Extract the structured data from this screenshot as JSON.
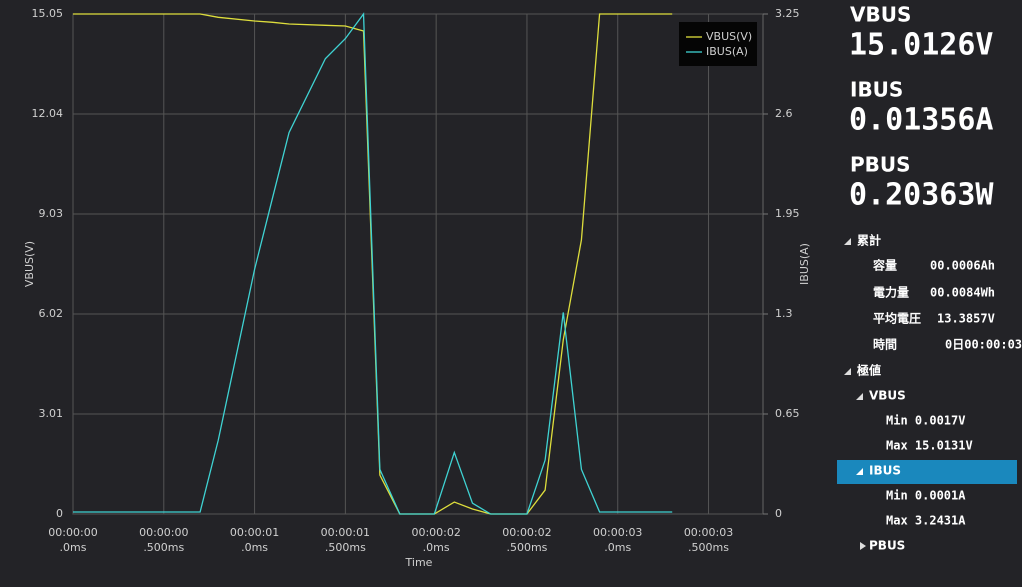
{
  "chart_data": {
    "type": "line",
    "x_label": "Time",
    "y_label": "VBUS(V)",
    "y2_label": "IBUS(A)",
    "x": [
      0,
      0.7,
      0.8,
      1.0,
      1.1,
      1.19,
      1.39,
      1.5,
      1.6,
      1.69,
      1.8,
      1.99,
      2.1,
      2.2,
      2.3,
      2.5,
      2.6,
      2.7,
      2.8,
      2.9,
      3.3
    ],
    "series": [
      {
        "name": "VBUS(V)",
        "color": "#dede3c",
        "values": [
          15.05,
          15.05,
          14.95,
          14.84,
          14.8,
          14.75,
          14.71,
          14.69,
          14.54,
          1.17,
          0,
          0,
          0.36,
          0.15,
          0,
          0,
          0.72,
          5.24,
          8.25,
          15.05,
          15.05
        ]
      },
      {
        "name": "IBUS(A)",
        "color": "#3fd3d3",
        "axis": "y2",
        "values": [
          0.013,
          0.013,
          0.48,
          1.59,
          2.06,
          2.48,
          2.96,
          3.09,
          3.25,
          0.29,
          0,
          0,
          0.4,
          0.07,
          0,
          0,
          0.35,
          1.31,
          0.29,
          0.013,
          0.013
        ]
      }
    ],
    "xlim": [
      0,
      3.8
    ],
    "xticks": [
      {
        "value": 0,
        "label": [
          "00:00:00",
          ".0ms"
        ]
      },
      {
        "value": 0.5,
        "label": [
          "00:00:00",
          ".500ms"
        ]
      },
      {
        "value": 1,
        "label": [
          "00:00:01",
          ".0ms"
        ]
      },
      {
        "value": 1.5,
        "label": [
          "00:00:01",
          ".500ms"
        ]
      },
      {
        "value": 2,
        "label": [
          "00:00:02",
          ".0ms"
        ]
      },
      {
        "value": 2.5,
        "label": [
          "00:00:02",
          ".500ms"
        ]
      },
      {
        "value": 3,
        "label": [
          "00:00:03",
          ".0ms"
        ]
      },
      {
        "value": 3.5,
        "label": [
          "00:00:03",
          ".500ms"
        ]
      }
    ],
    "ylim": [
      0,
      15.05
    ],
    "yticks": [
      0,
      3.01,
      6.02,
      9.03,
      12.04,
      15.05
    ],
    "y2lim": [
      0,
      3.25
    ],
    "y2ticks": [
      0,
      0.65,
      1.3,
      1.95,
      2.6,
      3.25
    ],
    "grid": true,
    "legend": "upper right"
  },
  "readings": [
    {
      "label": "VBUS",
      "value": "15.0126V"
    },
    {
      "label": "IBUS",
      "value": "0.01356A"
    },
    {
      "label": "PBUS",
      "value": "0.20363W"
    }
  ],
  "tree": {
    "total": {
      "label": "累計",
      "items": [
        {
          "key": "容量",
          "value": "00.0006Ah"
        },
        {
          "key": "電力量",
          "value": "00.0084Wh"
        },
        {
          "key": "平均電圧",
          "value": "13.3857V"
        },
        {
          "key": "時間",
          "value": "0日00:00:03"
        }
      ]
    },
    "extremes": {
      "label": "極値",
      "items": [
        {
          "label": "VBUS",
          "min": "Min 0.0017V",
          "max": "Max 15.0131V"
        },
        {
          "label": "IBUS",
          "min": "Min 0.0001A",
          "max": "Max 3.2431A"
        },
        {
          "label": "PBUS"
        }
      ]
    }
  }
}
